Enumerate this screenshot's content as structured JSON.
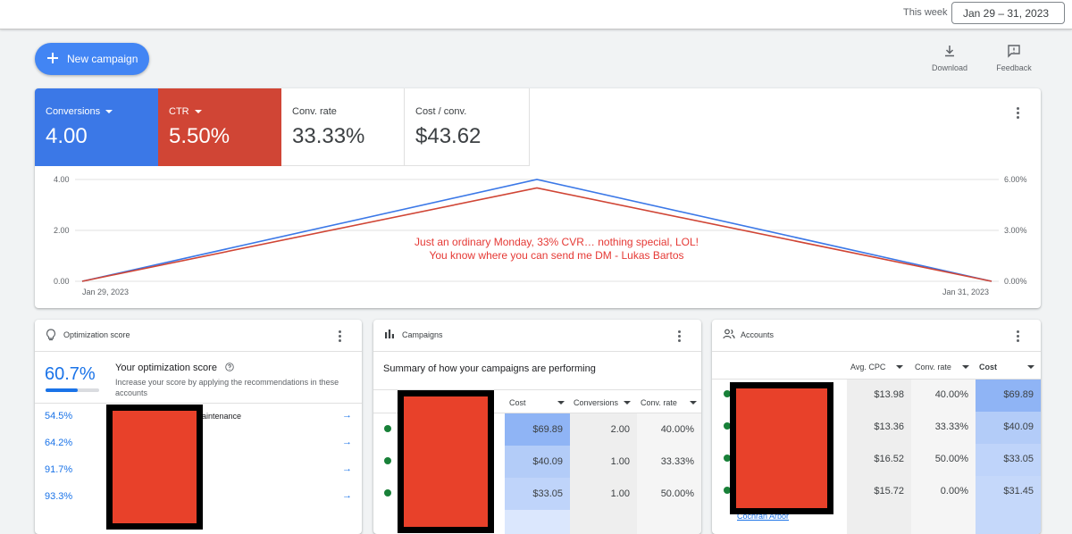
{
  "topbar": {
    "this_week": "This week",
    "date_range": "Jan 29 – 31, 2023"
  },
  "actions": {
    "new_campaign": "New campaign",
    "download": "Download",
    "feedback": "Feedback"
  },
  "metrics": [
    {
      "label": "Conversions",
      "value": "4.00",
      "bg": "#3b78e7"
    },
    {
      "label": "CTR",
      "value": "5.50%",
      "bg": "#d04535"
    },
    {
      "label": "Conv. rate",
      "value": "33.33%"
    },
    {
      "label": "Cost / conv.",
      "value": "$43.62"
    }
  ],
  "chart_data": {
    "type": "line",
    "x": [
      "Jan 29, 2023",
      "Jan 30, 2023",
      "Jan 31, 2023"
    ],
    "x_tick_labels": [
      "Jan 29, 2023",
      "Jan 31, 2023"
    ],
    "series": [
      {
        "name": "Conversions",
        "axis": "left",
        "values": [
          0,
          4,
          0
        ],
        "color": "#3b78e7"
      },
      {
        "name": "CTR",
        "axis": "right",
        "values": [
          0,
          5.5,
          0
        ],
        "color": "#d04535"
      }
    ],
    "y_left": {
      "ticks": [
        "0.00",
        "2.00",
        "4.00"
      ],
      "range": [
        0,
        4
      ]
    },
    "y_right": {
      "ticks": [
        "0.00%",
        "3.00%",
        "6.00%"
      ],
      "range": [
        0,
        6
      ]
    },
    "annotation": [
      "Just an ordinary Monday, 33% CVR… nothing special, LOL!",
      "You know where you can send me DM - Lukas Bartos"
    ]
  },
  "optimization": {
    "title": "Optimization score",
    "score": "60.7%",
    "score_fraction": 0.607,
    "heading": "Your optimization score",
    "desc": "Increase your score by applying the recommendations in these accounts",
    "rows": [
      {
        "pct": "54.5%",
        "text": "aintenance"
      },
      {
        "pct": "64.2%",
        "text": ""
      },
      {
        "pct": "91.7%",
        "text": ""
      },
      {
        "pct": "93.3%",
        "text": ""
      }
    ]
  },
  "campaigns": {
    "title": "Campaigns",
    "summary": "Summary of how your campaigns are performing",
    "headers": [
      "Cost",
      "Conversions",
      "Conv. rate"
    ],
    "rows": [
      [
        "$69.89",
        "2.00",
        "40.00%"
      ],
      [
        "$40.09",
        "1.00",
        "33.33%"
      ],
      [
        "$33.05",
        "1.00",
        "50.00%"
      ]
    ]
  },
  "accounts": {
    "title": "Accounts",
    "headers": [
      "Avg. CPC",
      "Conv. rate",
      "Cost"
    ],
    "rows": [
      [
        "$13.98",
        "40.00%",
        "$69.89"
      ],
      [
        "$13.36",
        "33.33%",
        "$40.09"
      ],
      [
        "$16.52",
        "50.00%",
        "$33.05"
      ],
      [
        "$15.72",
        "0.00%",
        "$31.45"
      ]
    ],
    "partial_name": "Cochran Arbor"
  }
}
